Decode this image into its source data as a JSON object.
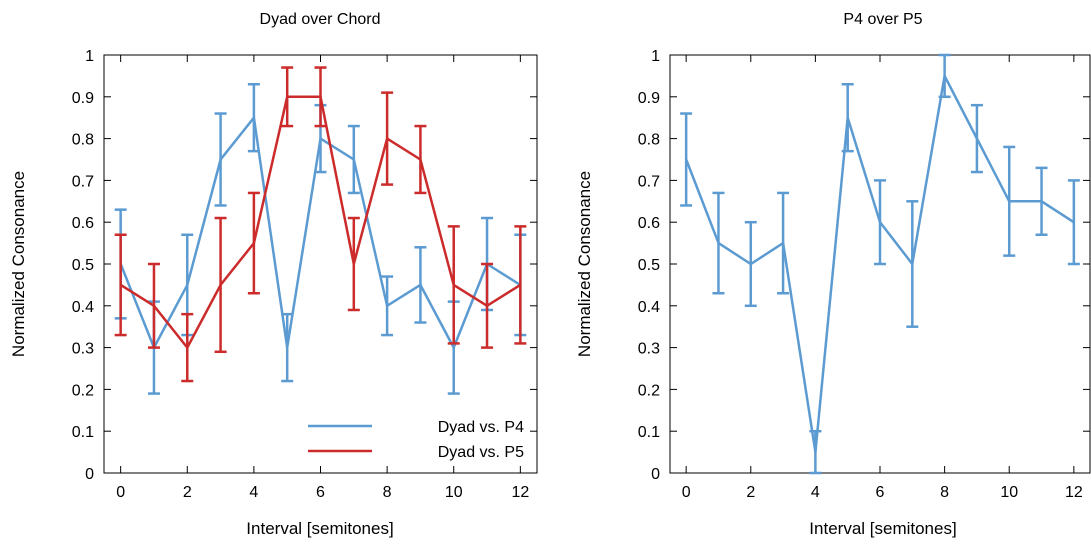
{
  "chart_data": [
    {
      "type": "line",
      "title": "Dyad over Chord",
      "xlabel": "Interval [semitones]",
      "ylabel": "Normalized Consonance",
      "xlim": [
        -0.5,
        12.5
      ],
      "ylim": [
        0,
        1
      ],
      "x_ticks": [
        0,
        2,
        4,
        6,
        8,
        10,
        12
      ],
      "y_ticks": [
        0,
        0.1,
        0.2,
        0.3,
        0.4,
        0.5,
        0.6,
        0.7,
        0.8,
        0.9,
        1
      ],
      "x": [
        0,
        1,
        2,
        3,
        4,
        5,
        6,
        7,
        8,
        9,
        10,
        11,
        12
      ],
      "grid": false,
      "legend_position": "bottom-right",
      "error_bars": true,
      "series": [
        {
          "name": "Dyad vs. P4",
          "color": "#5b9bd1",
          "values": [
            0.5,
            0.3,
            0.45,
            0.75,
            0.85,
            0.3,
            0.8,
            0.75,
            0.4,
            0.45,
            0.3,
            0.5,
            0.45
          ],
          "err_low": [
            0.37,
            0.19,
            0.33,
            0.64,
            0.77,
            0.22,
            0.72,
            0.67,
            0.33,
            0.36,
            0.19,
            0.39,
            0.33
          ],
          "err_high": [
            0.63,
            0.41,
            0.57,
            0.86,
            0.93,
            0.38,
            0.88,
            0.83,
            0.47,
            0.54,
            0.41,
            0.61,
            0.57
          ]
        },
        {
          "name": "Dyad vs. P5",
          "color": "#cc2b2b",
          "values": [
            0.45,
            0.4,
            0.3,
            0.45,
            0.55,
            0.9,
            0.9,
            0.5,
            0.8,
            0.75,
            0.45,
            0.4,
            0.45
          ],
          "err_low": [
            0.33,
            0.3,
            0.22,
            0.29,
            0.43,
            0.83,
            0.83,
            0.39,
            0.69,
            0.67,
            0.31,
            0.3,
            0.31
          ],
          "err_high": [
            0.57,
            0.5,
            0.38,
            0.61,
            0.67,
            0.97,
            0.97,
            0.61,
            0.91,
            0.83,
            0.59,
            0.5,
            0.59
          ]
        }
      ]
    },
    {
      "type": "line",
      "title": "P4 over P5",
      "xlabel": "Interval [semitones]",
      "ylabel": "Normalized Consonance",
      "xlim": [
        -0.5,
        12.5
      ],
      "ylim": [
        0,
        1
      ],
      "x_ticks": [
        0,
        2,
        4,
        6,
        8,
        10,
        12
      ],
      "y_ticks": [
        0,
        0.1,
        0.2,
        0.3,
        0.4,
        0.5,
        0.6,
        0.7,
        0.8,
        0.9,
        1
      ],
      "x": [
        0,
        1,
        2,
        3,
        4,
        5,
        6,
        7,
        8,
        9,
        10,
        11,
        12
      ],
      "grid": false,
      "error_bars": true,
      "series": [
        {
          "color": "#5b9bd1",
          "values": [
            0.75,
            0.55,
            0.5,
            0.55,
            0.05,
            0.85,
            0.6,
            0.5,
            0.95,
            0.8,
            0.65,
            0.65,
            0.6
          ],
          "err_low": [
            0.64,
            0.43,
            0.4,
            0.43,
            0.0,
            0.77,
            0.5,
            0.35,
            0.9,
            0.72,
            0.52,
            0.57,
            0.5
          ],
          "err_high": [
            0.86,
            0.67,
            0.6,
            0.67,
            0.1,
            0.93,
            0.7,
            0.65,
            1.0,
            0.88,
            0.78,
            0.73,
            0.7
          ]
        }
      ]
    }
  ]
}
